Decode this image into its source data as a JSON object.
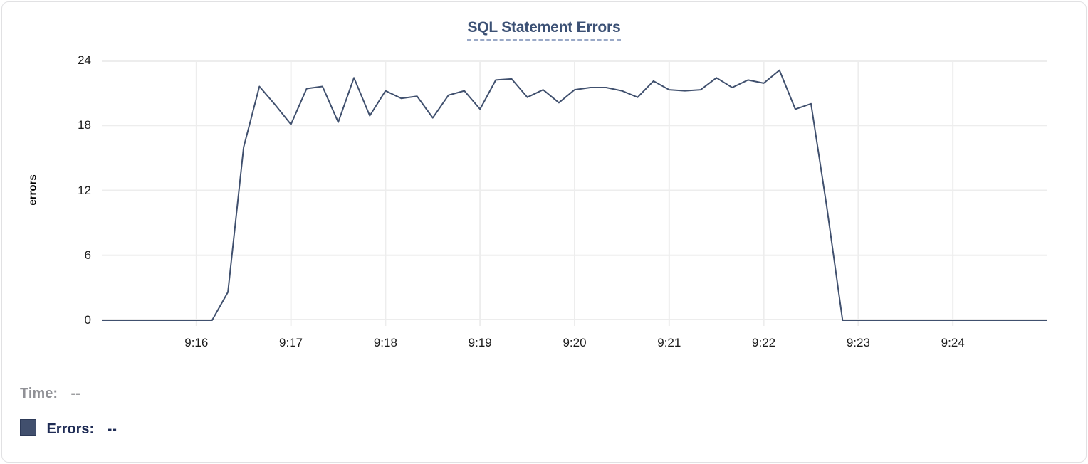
{
  "chart": {
    "title": "SQL Statement Errors"
  },
  "y_axis": {
    "title": "errors"
  },
  "legend": {
    "time_label": "Time:",
    "time_value": "--",
    "errors_label": "Errors:",
    "errors_value": "--"
  },
  "colors": {
    "line": "#40506e",
    "title": "#3c5175",
    "title_underline": "#9aa9c7",
    "grid": "#ededed",
    "tick_text": "#1b1b1b",
    "legend_time": "#909196",
    "legend_errors": "#1f2c55",
    "swatch": "#414f6d",
    "card_border": "#e1e1e3"
  },
  "chart_data": {
    "type": "line",
    "title": "SQL Statement Errors",
    "xlabel": "",
    "ylabel": "errors",
    "ylim": [
      0,
      24
    ],
    "yticks": [
      0,
      6,
      12,
      18,
      24
    ],
    "xtick_labels": [
      "9:16",
      "9:17",
      "9:18",
      "9:19",
      "9:20",
      "9:21",
      "9:22",
      "9:23",
      "9:24"
    ],
    "grid": true,
    "legend_position": "bottom-left",
    "x": [
      "9:15:00",
      "9:15:10",
      "9:15:20",
      "9:15:30",
      "9:15:40",
      "9:15:50",
      "9:16:00",
      "9:16:10",
      "9:16:20",
      "9:16:30",
      "9:16:40",
      "9:16:50",
      "9:17:00",
      "9:17:10",
      "9:17:20",
      "9:17:30",
      "9:17:40",
      "9:17:50",
      "9:18:00",
      "9:18:10",
      "9:18:20",
      "9:18:30",
      "9:18:40",
      "9:18:50",
      "9:19:00",
      "9:19:10",
      "9:19:20",
      "9:19:30",
      "9:19:40",
      "9:19:50",
      "9:20:00",
      "9:20:10",
      "9:20:20",
      "9:20:30",
      "9:20:40",
      "9:20:50",
      "9:21:00",
      "9:21:10",
      "9:21:20",
      "9:21:30",
      "9:21:40",
      "9:21:50",
      "9:22:00",
      "9:22:10",
      "9:22:20",
      "9:22:30",
      "9:22:40",
      "9:22:50",
      "9:23:00",
      "9:23:10",
      "9:23:20",
      "9:23:30",
      "9:23:40",
      "9:23:50",
      "9:24:00",
      "9:24:10",
      "9:24:20",
      "9:24:30",
      "9:24:40",
      "9:24:50",
      "9:25:00"
    ],
    "series": [
      {
        "name": "Errors",
        "values": [
          0,
          0,
          0,
          0,
          0,
          0,
          0,
          0,
          2.6,
          16,
          21.6,
          19.9,
          18.1,
          21.4,
          21.6,
          18.3,
          22.4,
          18.9,
          21.2,
          20.5,
          20.7,
          18.7,
          20.8,
          21.2,
          19.5,
          22.2,
          22.3,
          20.6,
          21.3,
          20.1,
          21.3,
          21.5,
          21.5,
          21.2,
          20.6,
          22.1,
          21.3,
          21.2,
          21.3,
          22.4,
          21.5,
          22.2,
          21.9,
          23.1,
          19.5,
          20,
          10.5,
          0,
          0,
          0,
          0,
          0,
          0,
          0,
          0,
          0,
          0,
          0,
          0,
          0,
          0
        ]
      }
    ]
  }
}
